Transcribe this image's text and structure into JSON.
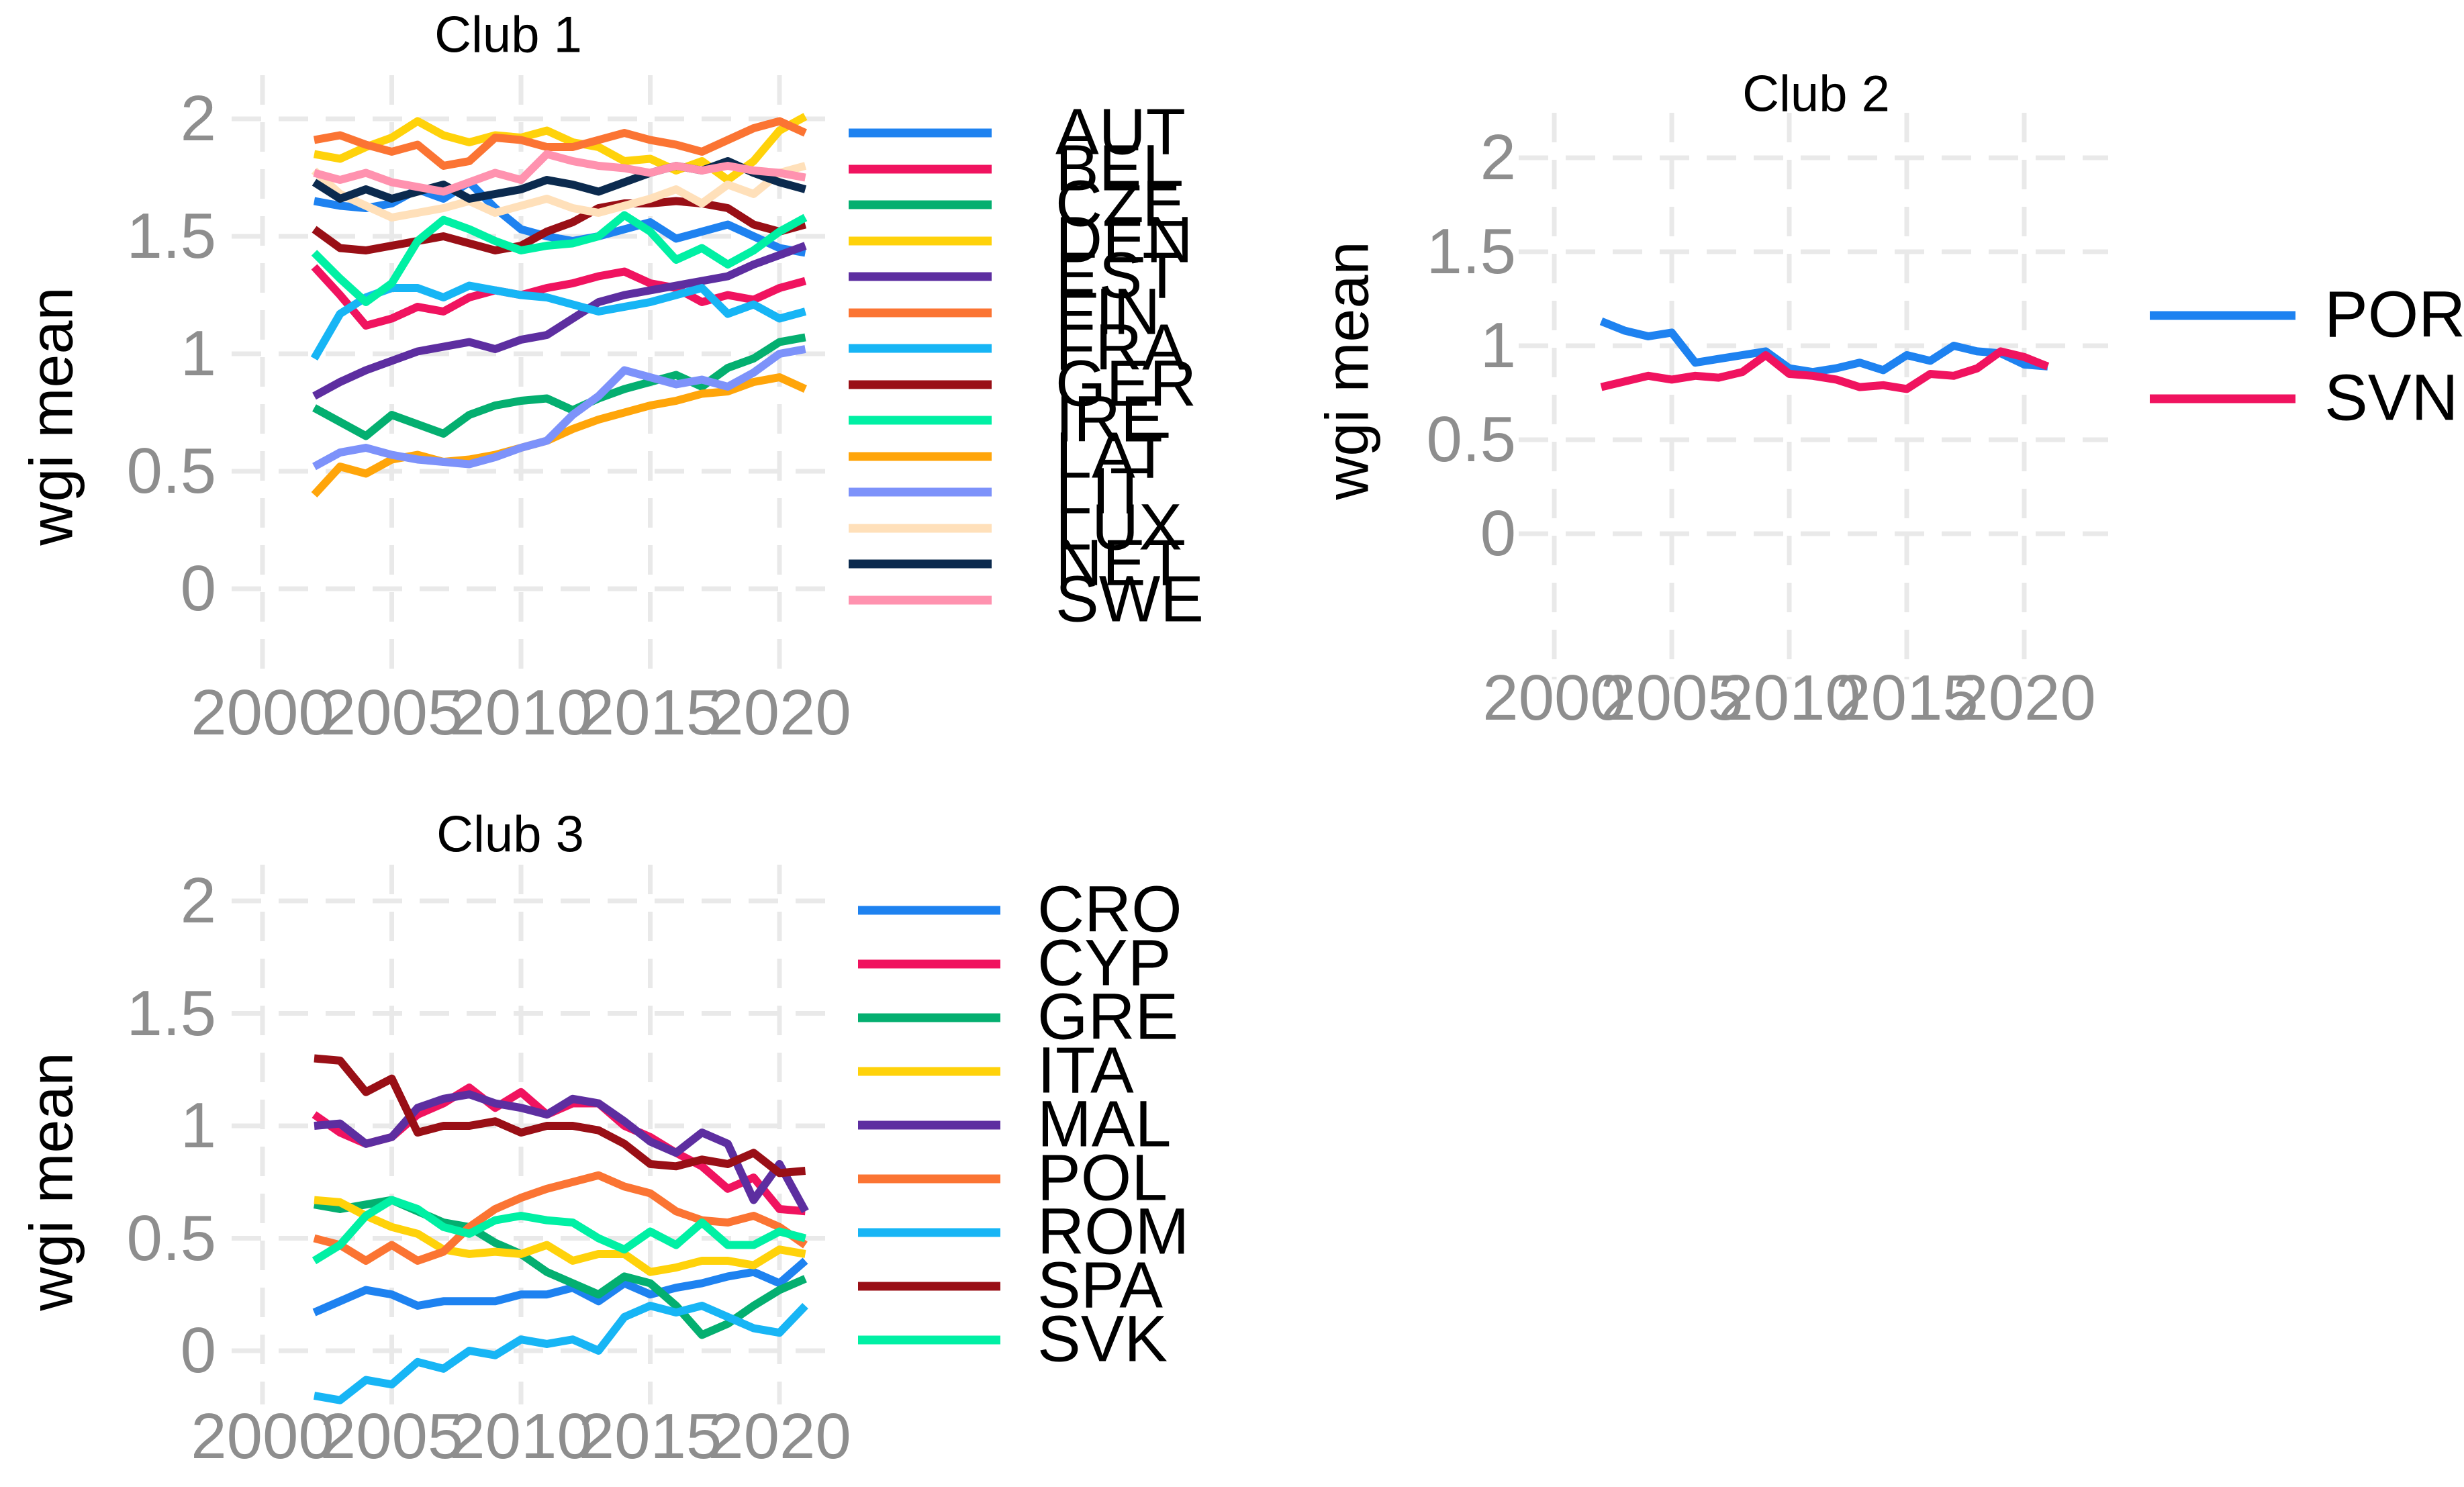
{
  "chart_data": [
    {
      "type": "line",
      "title": "Club 1",
      "xlabel": "",
      "ylabel": "wgi mean",
      "x": [
        2002,
        2003,
        2004,
        2005,
        2006,
        2007,
        2008,
        2009,
        2010,
        2011,
        2012,
        2013,
        2014,
        2015,
        2016,
        2017,
        2018,
        2019,
        2020,
        2021
      ],
      "x_ticks": [
        2000,
        2005,
        2010,
        2015,
        2020
      ],
      "x_tick_labels": [
        "2000",
        "2005",
        "2010",
        "2015",
        "2020"
      ],
      "y_ticks": [
        0,
        0.5,
        1,
        1.5,
        2
      ],
      "y_tick_labels": [
        "0",
        "0.5",
        "1",
        "1.5",
        "2"
      ],
      "ylim": [
        -0.2,
        2.2
      ],
      "grid": "dashed",
      "legend_position": "right",
      "series": [
        {
          "name": "AUT",
          "color": "#1E82F0",
          "values": [
            1.65,
            1.63,
            1.62,
            1.64,
            1.7,
            1.66,
            1.73,
            1.62,
            1.53,
            1.5,
            1.48,
            1.5,
            1.53,
            1.56,
            1.49,
            1.52,
            1.55,
            1.5,
            1.45,
            1.43
          ]
        },
        {
          "name": "BEL",
          "color": "#F0135F",
          "values": [
            1.37,
            1.25,
            1.12,
            1.15,
            1.2,
            1.18,
            1.24,
            1.27,
            1.25,
            1.28,
            1.3,
            1.33,
            1.35,
            1.3,
            1.28,
            1.22,
            1.25,
            1.23,
            1.28,
            1.31
          ]
        },
        {
          "name": "CZE",
          "color": "#04AF70",
          "values": [
            0.77,
            0.71,
            0.65,
            0.74,
            0.7,
            0.66,
            0.74,
            0.78,
            0.8,
            0.81,
            0.76,
            0.81,
            0.85,
            0.88,
            0.91,
            0.86,
            0.94,
            0.98,
            1.05,
            1.07
          ]
        },
        {
          "name": "DEN",
          "color": "#FFD20A",
          "values": [
            1.85,
            1.83,
            1.88,
            1.92,
            1.99,
            1.93,
            1.9,
            1.93,
            1.92,
            1.95,
            1.9,
            1.88,
            1.82,
            1.83,
            1.78,
            1.82,
            1.74,
            1.82,
            1.95,
            2.01
          ]
        },
        {
          "name": "EST",
          "color": "#5D2EA0",
          "values": [
            0.82,
            0.88,
            0.93,
            0.97,
            1.01,
            1.03,
            1.05,
            1.02,
            1.06,
            1.08,
            1.15,
            1.22,
            1.25,
            1.27,
            1.29,
            1.31,
            1.33,
            1.38,
            1.42,
            1.46
          ]
        },
        {
          "name": "FIN",
          "color": "#FB7433",
          "values": [
            1.91,
            1.93,
            1.89,
            1.86,
            1.89,
            1.8,
            1.82,
            1.92,
            1.91,
            1.88,
            1.88,
            1.91,
            1.94,
            1.91,
            1.89,
            1.86,
            1.91,
            1.96,
            1.99,
            1.94
          ]
        },
        {
          "name": "FRA",
          "color": "#17B5F5",
          "values": [
            0.98,
            1.17,
            1.24,
            1.28,
            1.28,
            1.24,
            1.29,
            1.27,
            1.25,
            1.24,
            1.21,
            1.18,
            1.2,
            1.22,
            1.25,
            1.28,
            1.17,
            1.21,
            1.15,
            1.18
          ]
        },
        {
          "name": "GER",
          "color": "#990F16",
          "values": [
            1.53,
            1.45,
            1.44,
            1.46,
            1.48,
            1.5,
            1.47,
            1.44,
            1.46,
            1.52,
            1.56,
            1.62,
            1.64,
            1.64,
            1.65,
            1.64,
            1.62,
            1.55,
            1.52,
            1.55
          ]
        },
        {
          "name": "IRE",
          "color": "#00F0A4",
          "values": [
            1.43,
            1.32,
            1.22,
            1.3,
            1.48,
            1.57,
            1.53,
            1.48,
            1.44,
            1.46,
            1.47,
            1.5,
            1.59,
            1.52,
            1.4,
            1.45,
            1.38,
            1.44,
            1.52,
            1.58
          ]
        },
        {
          "name": "LAT",
          "color": "#FFA50A",
          "values": [
            0.4,
            0.52,
            0.49,
            0.55,
            0.57,
            0.54,
            0.55,
            0.57,
            0.6,
            0.63,
            0.68,
            0.72,
            0.75,
            0.78,
            0.8,
            0.83,
            0.84,
            0.88,
            0.9,
            0.85
          ]
        },
        {
          "name": "LIT",
          "color": "#7D92FA",
          "values": [
            0.52,
            0.58,
            0.6,
            0.57,
            0.55,
            0.54,
            0.53,
            0.56,
            0.6,
            0.63,
            0.74,
            0.82,
            0.93,
            0.9,
            0.87,
            0.89,
            0.86,
            0.92,
            1.0,
            1.02
          ]
        },
        {
          "name": "LUX",
          "color": "#FFE0BA",
          "values": [
            1.78,
            1.68,
            1.63,
            1.58,
            1.6,
            1.62,
            1.65,
            1.6,
            1.63,
            1.66,
            1.62,
            1.6,
            1.63,
            1.66,
            1.7,
            1.64,
            1.72,
            1.68,
            1.77,
            1.8
          ]
        },
        {
          "name": "NET",
          "color": "#0B2A4E",
          "values": [
            1.73,
            1.66,
            1.7,
            1.66,
            1.69,
            1.72,
            1.66,
            1.68,
            1.7,
            1.74,
            1.72,
            1.69,
            1.73,
            1.77,
            1.8,
            1.78,
            1.82,
            1.77,
            1.73,
            1.7
          ]
        },
        {
          "name": "SWE",
          "color": "#FF92AF",
          "values": [
            1.77,
            1.74,
            1.77,
            1.73,
            1.71,
            1.69,
            1.73,
            1.77,
            1.74,
            1.85,
            1.82,
            1.8,
            1.79,
            1.77,
            1.8,
            1.78,
            1.8,
            1.78,
            1.77,
            1.75
          ]
        }
      ]
    },
    {
      "type": "line",
      "title": "Club 2",
      "xlabel": "",
      "ylabel": "wgi mean",
      "x": [
        2002,
        2003,
        2004,
        2005,
        2006,
        2007,
        2008,
        2009,
        2010,
        2011,
        2012,
        2013,
        2014,
        2015,
        2016,
        2017,
        2018,
        2019,
        2020,
        2021
      ],
      "x_ticks": [
        2000,
        2005,
        2010,
        2015,
        2020
      ],
      "x_tick_labels": [
        "2000",
        "2005",
        "2010",
        "2015",
        "2020"
      ],
      "y_ticks": [
        0,
        0.5,
        1,
        1.5,
        2
      ],
      "y_tick_labels": [
        "0",
        "0.5",
        "1",
        "1.5",
        "2"
      ],
      "ylim": [
        -0.5,
        2.2
      ],
      "grid": "dashed",
      "legend_position": "right",
      "series": [
        {
          "name": "POR",
          "color": "#1E82F0",
          "values": [
            1.13,
            1.08,
            1.05,
            1.07,
            0.91,
            0.93,
            0.95,
            0.97,
            0.88,
            0.86,
            0.88,
            0.91,
            0.87,
            0.95,
            0.92,
            1.0,
            0.97,
            0.96,
            0.9,
            0.89
          ]
        },
        {
          "name": "SVN",
          "color": "#F0135F",
          "values": [
            0.78,
            0.81,
            0.84,
            0.82,
            0.84,
            0.83,
            0.86,
            0.95,
            0.85,
            0.84,
            0.82,
            0.78,
            0.79,
            0.77,
            0.85,
            0.84,
            0.88,
            0.97,
            0.94,
            0.89
          ]
        }
      ]
    },
    {
      "type": "line",
      "title": "Club 3",
      "xlabel": "",
      "ylabel": "wgi mean",
      "x": [
        2002,
        2003,
        2004,
        2005,
        2006,
        2007,
        2008,
        2009,
        2010,
        2011,
        2012,
        2013,
        2014,
        2015,
        2016,
        2017,
        2018,
        2019,
        2020,
        2021
      ],
      "x_ticks": [
        2000,
        2005,
        2010,
        2015,
        2020
      ],
      "x_tick_labels": [
        "2000",
        "2005",
        "2010",
        "2015",
        "2020"
      ],
      "y_ticks": [
        0,
        0.5,
        1,
        1.5,
        2
      ],
      "y_tick_labels": [
        "0",
        "0.5",
        "1",
        "1.5",
        "2"
      ],
      "ylim": [
        -0.25,
        2.15
      ],
      "grid": "dashed",
      "legend_position": "right",
      "series": [
        {
          "name": "CRO",
          "color": "#1E82F0",
          "values": [
            0.17,
            0.22,
            0.27,
            0.25,
            0.2,
            0.22,
            0.22,
            0.22,
            0.25,
            0.25,
            0.28,
            0.22,
            0.3,
            0.25,
            0.28,
            0.3,
            0.33,
            0.35,
            0.3,
            0.4
          ]
        },
        {
          "name": "CYP",
          "color": "#F0135F",
          "values": [
            1.05,
            0.97,
            0.92,
            0.95,
            1.05,
            1.1,
            1.17,
            1.08,
            1.15,
            1.05,
            1.1,
            1.1,
            1.0,
            0.95,
            0.88,
            0.82,
            0.72,
            0.77,
            0.63,
            0.62
          ]
        },
        {
          "name": "GRE",
          "color": "#04AF70",
          "values": [
            0.65,
            0.63,
            0.65,
            0.67,
            0.62,
            0.57,
            0.55,
            0.48,
            0.43,
            0.35,
            0.3,
            0.25,
            0.33,
            0.3,
            0.2,
            0.07,
            0.12,
            0.2,
            0.27,
            0.32
          ]
        },
        {
          "name": "ITA",
          "color": "#FFD20A",
          "values": [
            0.67,
            0.66,
            0.6,
            0.55,
            0.52,
            0.45,
            0.43,
            0.44,
            0.43,
            0.47,
            0.4,
            0.43,
            0.43,
            0.35,
            0.37,
            0.4,
            0.4,
            0.38,
            0.45,
            0.43
          ]
        },
        {
          "name": "MAL",
          "color": "#5D2EA0",
          "values": [
            1.0,
            1.01,
            0.92,
            0.95,
            1.08,
            1.12,
            1.14,
            1.1,
            1.08,
            1.05,
            1.12,
            1.1,
            1.02,
            0.93,
            0.88,
            0.97,
            0.92,
            0.67,
            0.83,
            0.62
          ]
        },
        {
          "name": "POL",
          "color": "#FB7433",
          "values": [
            0.5,
            0.47,
            0.4,
            0.47,
            0.4,
            0.44,
            0.55,
            0.63,
            0.68,
            0.72,
            0.75,
            0.78,
            0.73,
            0.7,
            0.62,
            0.58,
            0.57,
            0.6,
            0.55,
            0.47
          ]
        },
        {
          "name": "ROM",
          "color": "#17B5F5",
          "values": [
            -0.2,
            -0.22,
            -0.13,
            -0.15,
            -0.05,
            -0.08,
            0.0,
            -0.02,
            0.05,
            0.03,
            0.05,
            0.0,
            0.15,
            0.2,
            0.17,
            0.2,
            0.15,
            0.1,
            0.08,
            0.2
          ]
        },
        {
          "name": "SPA",
          "color": "#990F16",
          "values": [
            1.3,
            1.29,
            1.15,
            1.21,
            0.97,
            1.0,
            1.0,
            1.02,
            0.97,
            1.0,
            1.0,
            0.98,
            0.92,
            0.83,
            0.82,
            0.85,
            0.83,
            0.88,
            0.79,
            0.8
          ]
        },
        {
          "name": "SVK",
          "color": "#00F0A4",
          "values": [
            0.4,
            0.47,
            0.6,
            0.67,
            0.63,
            0.55,
            0.52,
            0.58,
            0.6,
            0.58,
            0.57,
            0.5,
            0.45,
            0.53,
            0.47,
            0.57,
            0.47,
            0.47,
            0.53,
            0.5
          ]
        }
      ]
    }
  ]
}
